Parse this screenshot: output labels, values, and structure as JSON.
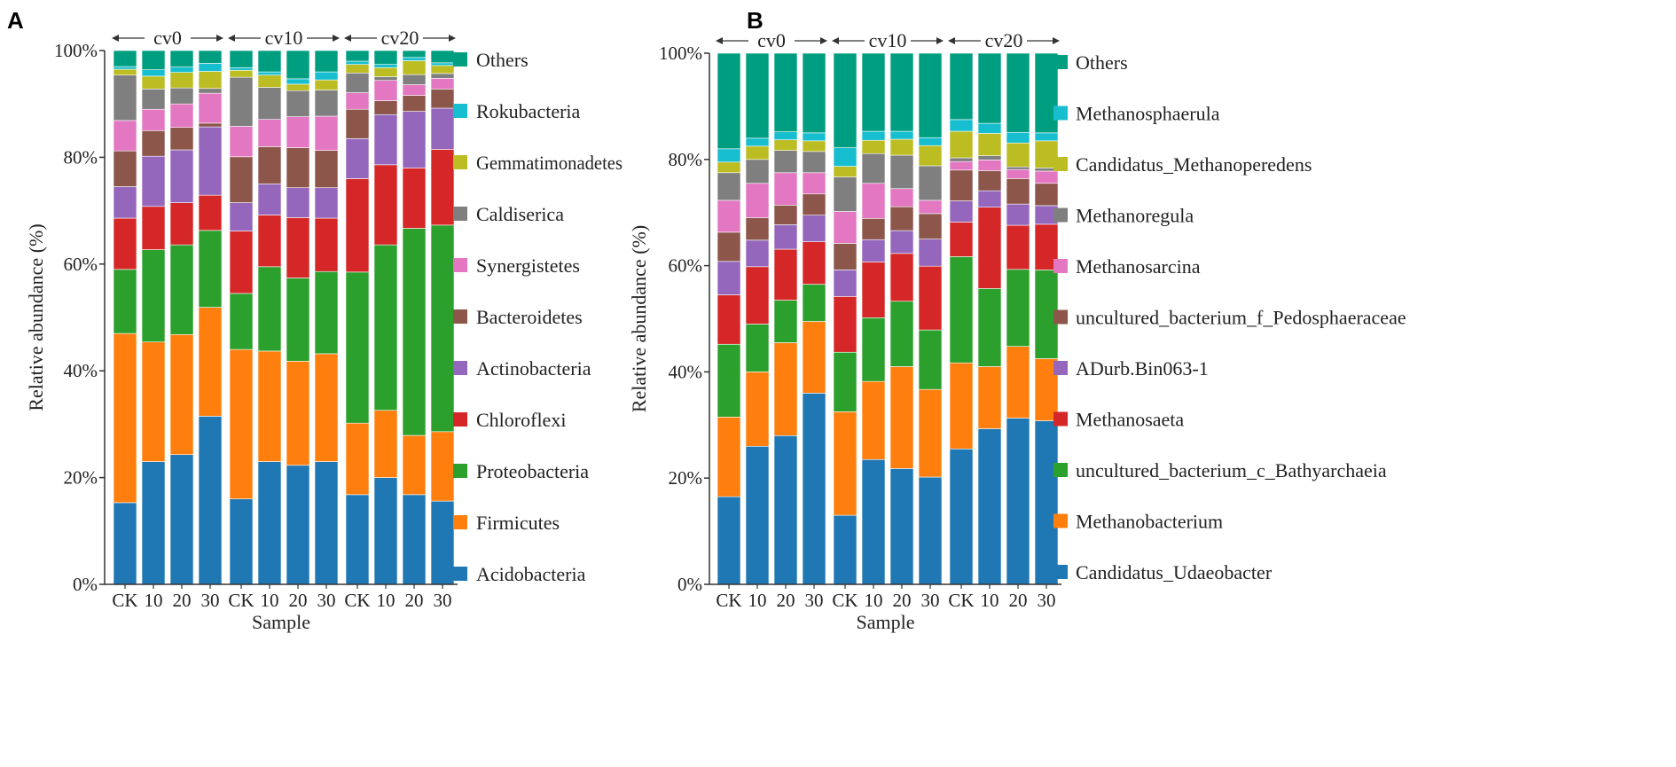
{
  "chart_data": [
    {
      "panel": "A",
      "type": "bar",
      "stacked": true,
      "xlabel": "Sample",
      "ylabel": "Relative abundance (%)",
      "ylim": [
        0,
        100
      ],
      "yticks": [
        "0%",
        "20%",
        "40%",
        "60%",
        "80%",
        "100%"
      ],
      "groups": [
        "cv0",
        "cv10",
        "cv20"
      ],
      "categories": [
        "CK",
        "10",
        "20",
        "30",
        "CK",
        "10",
        "20",
        "30",
        "CK",
        "10",
        "20",
        "30"
      ],
      "legend_position": "right",
      "series": [
        {
          "name": "Acidobacteria",
          "color": "#1f77b4",
          "values": [
            15.3,
            23.0,
            24.3,
            31.5,
            16.0,
            23.0,
            22.3,
            23.0,
            16.8,
            20.0,
            16.8,
            15.6
          ]
        },
        {
          "name": "Firmicutes",
          "color": "#ff7f0e",
          "values": [
            31.7,
            22.4,
            22.5,
            20.4,
            28.0,
            20.7,
            19.5,
            20.2,
            13.4,
            12.6,
            11.1,
            13.0
          ]
        },
        {
          "name": "Proteobacteria",
          "color": "#2ca02c",
          "values": [
            12.0,
            17.3,
            16.8,
            14.4,
            10.5,
            15.8,
            15.6,
            15.4,
            28.3,
            31.0,
            38.8,
            38.7
          ]
        },
        {
          "name": "Chloroflexi",
          "color": "#d62728",
          "values": [
            9.6,
            8.1,
            7.9,
            6.6,
            11.7,
            9.7,
            11.3,
            10.0,
            17.5,
            15.0,
            11.3,
            14.2
          ]
        },
        {
          "name": "Actinobacteria",
          "color": "#9467bd",
          "values": [
            5.9,
            9.4,
            9.9,
            12.8,
            5.3,
            5.8,
            5.6,
            5.7,
            7.5,
            9.4,
            10.6,
            7.7
          ]
        },
        {
          "name": "Bacteroidetes",
          "color": "#8c564b",
          "values": [
            6.7,
            4.8,
            4.2,
            0.7,
            8.6,
            7.0,
            7.5,
            7.0,
            5.5,
            2.6,
            3.0,
            3.6
          ]
        },
        {
          "name": "Synergistetes",
          "color": "#e377c2",
          "values": [
            5.7,
            4.0,
            4.4,
            5.6,
            5.7,
            5.1,
            5.8,
            6.4,
            3.1,
            3.8,
            2.0,
            2.0
          ]
        },
        {
          "name": "Caldiserica",
          "color": "#7f7f7f",
          "values": [
            8.5,
            3.8,
            3.0,
            0.9,
            9.2,
            6.0,
            4.9,
            4.9,
            3.7,
            0.7,
            1.9,
            0.9
          ]
        },
        {
          "name": "Gemmatimonadetes",
          "color": "#bcbd22",
          "values": [
            1.1,
            2.4,
            2.9,
            3.2,
            1.3,
            2.3,
            1.2,
            1.9,
            1.6,
            1.7,
            2.6,
            1.5
          ]
        },
        {
          "name": "Rokubacteria",
          "color": "#17becf",
          "values": [
            0.5,
            1.2,
            1.0,
            1.5,
            0.5,
            0.6,
            1.0,
            1.5,
            0.6,
            0.6,
            0.6,
            0.5
          ]
        },
        {
          "name": "Others",
          "color": "#009e80",
          "values": [
            3.0,
            3.6,
            3.1,
            2.4,
            3.2,
            4.0,
            5.3,
            4.0,
            2.0,
            2.6,
            1.3,
            2.3
          ]
        }
      ]
    },
    {
      "panel": "B",
      "type": "bar",
      "stacked": true,
      "xlabel": "Sample",
      "ylabel": "Relative abundance (%)",
      "ylim": [
        0,
        100
      ],
      "yticks": [
        "0%",
        "20%",
        "40%",
        "60%",
        "80%",
        "100%"
      ],
      "groups": [
        "cv0",
        "cv10",
        "cv20"
      ],
      "categories": [
        "CK",
        "10",
        "20",
        "30",
        "CK",
        "10",
        "20",
        "30",
        "CK",
        "10",
        "20",
        "30"
      ],
      "legend_position": "right",
      "series": [
        {
          "name": "Candidatus_Udaeobacter",
          "color": "#1f77b4",
          "values": [
            16.5,
            26.0,
            28.0,
            36.0,
            13.0,
            23.5,
            21.8,
            20.2,
            25.5,
            29.3,
            31.3,
            30.8
          ]
        },
        {
          "name": "Methanobacterium",
          "color": "#ff7f0e",
          "values": [
            15.0,
            14.0,
            17.5,
            13.5,
            19.5,
            14.7,
            19.2,
            16.5,
            16.2,
            11.7,
            13.5,
            11.7
          ]
        },
        {
          "name": "uncultured_bacterium_c_Bathyarchaeia",
          "color": "#2ca02c",
          "values": [
            13.7,
            9.0,
            8.0,
            7.0,
            11.2,
            12.0,
            12.3,
            11.2,
            20.0,
            14.7,
            14.5,
            16.7
          ]
        },
        {
          "name": "Methanosaeta",
          "color": "#d62728",
          "values": [
            9.3,
            10.8,
            9.6,
            8.0,
            10.5,
            10.5,
            9.0,
            12.0,
            6.5,
            15.3,
            8.3,
            8.6
          ]
        },
        {
          "name": "ADurb.Bin063-1",
          "color": "#9467bd",
          "values": [
            6.3,
            5.0,
            4.6,
            5.0,
            5.0,
            4.2,
            4.3,
            5.1,
            4.0,
            3.1,
            4.0,
            3.5
          ]
        },
        {
          "name": "uncultured_bacterium_f_Pedosphaeraceae",
          "color": "#8c564b",
          "values": [
            5.5,
            4.2,
            3.7,
            4.0,
            5.0,
            4.0,
            4.5,
            4.8,
            5.8,
            3.8,
            4.8,
            4.2
          ]
        },
        {
          "name": "Methanosarcina",
          "color": "#e377c2",
          "values": [
            6.0,
            6.5,
            6.1,
            4.0,
            6.0,
            6.6,
            3.4,
            2.5,
            1.6,
            2.0,
            1.7,
            2.3
          ]
        },
        {
          "name": "Methanoregula",
          "color": "#7f7f7f",
          "values": [
            5.2,
            4.5,
            4.2,
            4.0,
            6.5,
            5.6,
            6.3,
            6.5,
            0.7,
            0.8,
            0.5,
            0.6
          ]
        },
        {
          "name": "Candidatus_Methanoperedens",
          "color": "#bcbd22",
          "values": [
            2.0,
            2.5,
            2.0,
            2.0,
            2.0,
            2.5,
            3.0,
            3.8,
            5.0,
            4.2,
            4.5,
            5.1
          ]
        },
        {
          "name": "Methanosphaerula",
          "color": "#17becf",
          "values": [
            2.5,
            1.5,
            1.5,
            1.5,
            3.5,
            1.7,
            1.5,
            1.5,
            2.2,
            1.9,
            2.0,
            1.5
          ]
        },
        {
          "name": "Others",
          "color": "#009e80",
          "values": [
            18.0,
            16.0,
            14.8,
            15.0,
            17.8,
            14.7,
            14.7,
            15.9,
            12.5,
            13.2,
            14.9,
            15.0
          ]
        }
      ]
    }
  ]
}
